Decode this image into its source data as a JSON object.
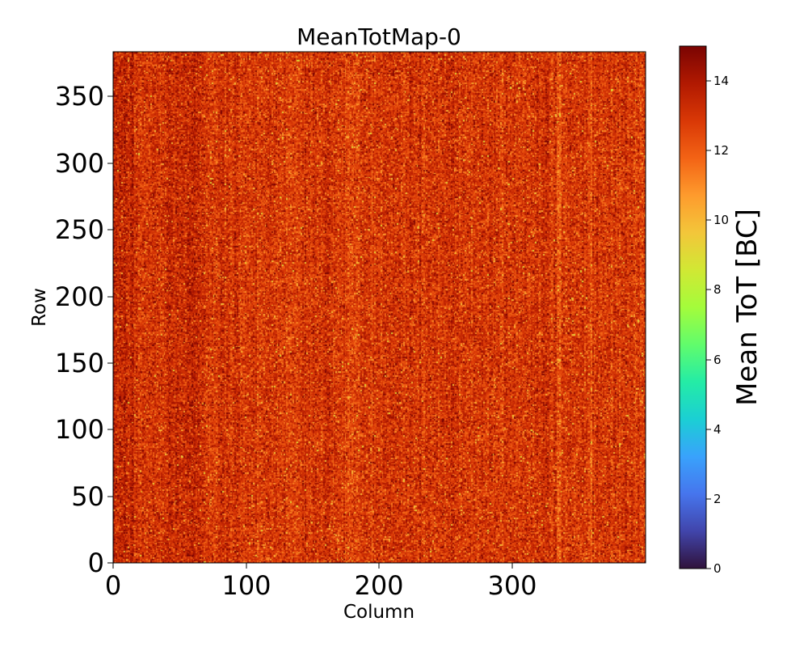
{
  "chart_data": {
    "type": "heatmap",
    "title": "MeanTotMap-0",
    "xlabel": "Column",
    "ylabel": "Row",
    "xlim": [
      0,
      400
    ],
    "ylim": [
      0,
      384
    ],
    "x_ticks": [
      0,
      100,
      200,
      300
    ],
    "y_ticks": [
      0,
      50,
      100,
      150,
      200,
      250,
      300,
      350
    ],
    "grid": false,
    "colormap": "turbo",
    "colorbar": {
      "label": "Mean ToT [BC]",
      "range": [
        0,
        15
      ],
      "ticks": [
        0,
        2,
        4,
        6,
        8,
        10,
        12,
        14
      ],
      "stops": [
        "#30123b",
        "#4145ab",
        "#4675ed",
        "#39a2fc",
        "#1bcfd4",
        "#24eca6",
        "#61fc6c",
        "#a4fc3b",
        "#d1e834",
        "#f3c63a",
        "#fe9b2d",
        "#f36315",
        "#d93806",
        "#b11901",
        "#7a0402"
      ]
    },
    "summary": {
      "typical_value_range": [
        10,
        14.5
      ],
      "dominant_value": 13,
      "description_of_pattern": "noisy map, mostly 12-14 BC with scattered 9-11 BC pixels and faint vertical column streaks"
    }
  },
  "labels": {
    "x_tick_labels": [
      "0",
      "100",
      "200",
      "300"
    ],
    "y_tick_labels": [
      "0",
      "50",
      "100",
      "150",
      "200",
      "250",
      "300",
      "350"
    ],
    "cbar_tick_labels": [
      "0",
      "2",
      "4",
      "6",
      "8",
      "10",
      "12",
      "14"
    ]
  }
}
